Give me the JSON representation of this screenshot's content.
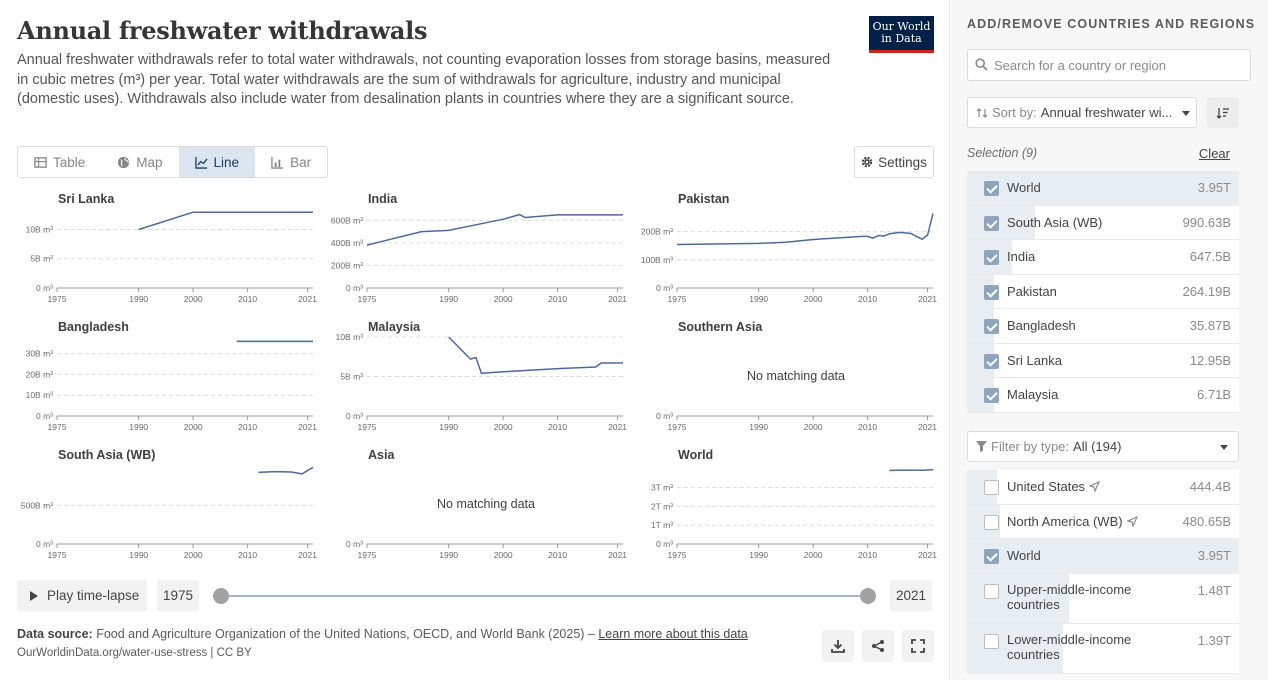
{
  "header": {
    "title": "Annual freshwater withdrawals",
    "subtitle": "Annual freshwater withdrawals refer to total water withdrawals, not counting evaporation losses from storage basins, measured in cubic metres (m³) per year. Total water withdrawals are the sum of withdrawals for agriculture, industry and municipal (domestic uses). Withdrawals also include water from desalination plants in countries where they are a significant source.",
    "logo_line1": "Our World",
    "logo_line2": "in Data"
  },
  "tabs": [
    {
      "label": "Table",
      "icon": "table-icon",
      "active": false
    },
    {
      "label": "Map",
      "icon": "globe-icon",
      "active": false
    },
    {
      "label": "Line",
      "icon": "line-chart-icon",
      "active": true
    },
    {
      "label": "Bar",
      "icon": "bar-chart-icon",
      "active": false
    }
  ],
  "settings_label": "Settings",
  "timeline": {
    "play_label": "Play time-lapse",
    "start_year": "1975",
    "end_year": "2021"
  },
  "footer": {
    "source_label": "Data source:",
    "source_text": "Food and Agriculture Organization of the United Nations, OECD, and World Bank (2025) –",
    "learn_more": "Learn more about this data",
    "url": "OurWorldinData.org/water-use-stress | CC BY"
  },
  "colors": {
    "line": "#4c6a9c",
    "accent": "#002147",
    "logo_red": "#ce261e",
    "selected_bg": "#e8edf2",
    "checkbox_on": "#8da6bd"
  },
  "chart_data": [
    {
      "type": "line",
      "title": "Sri Lanka",
      "x": [
        1990,
        2000,
        2005,
        2022
      ],
      "y": [
        10.0,
        12.95,
        12.95,
        12.95
      ],
      "yticks": [
        "0 m³",
        "5B m³",
        "10B m³"
      ],
      "yticks_values": [
        0,
        5,
        10
      ],
      "ylim": [
        0,
        13.5
      ],
      "xticks": [
        "1975",
        "1990",
        "2000",
        "2010",
        "2021"
      ],
      "xlim": [
        1975,
        2022
      ]
    },
    {
      "type": "line",
      "title": "India",
      "x": [
        1975,
        1985,
        1990,
        1995,
        2000,
        2003,
        2004,
        2010,
        2022
      ],
      "y": [
        380,
        500,
        510,
        560,
        610,
        650,
        625,
        647.5,
        647.5
      ],
      "yticks": [
        "0 m³",
        "200B m³",
        "400B m³",
        "600B m³"
      ],
      "yticks_values": [
        0,
        200,
        400,
        600
      ],
      "ylim": [
        0,
        700
      ],
      "xticks": [
        "1975",
        "1990",
        "2000",
        "2010",
        "2021"
      ],
      "xlim": [
        1975,
        2022
      ]
    },
    {
      "type": "line",
      "title": "Pakistan",
      "x": [
        1975,
        1990,
        1995,
        2000,
        2005,
        2009,
        2010,
        2011,
        2012,
        2013,
        2014,
        2016,
        2018,
        2019,
        2020,
        2021,
        2022
      ],
      "y": [
        154,
        158,
        162,
        172,
        178,
        183,
        183,
        177,
        186,
        184,
        192,
        197,
        193,
        182,
        173,
        188,
        264.19
      ],
      "yticks": [
        "0 m³",
        "100B m³",
        "200B m³"
      ],
      "yticks_values": [
        0,
        100,
        200
      ],
      "ylim": [
        0,
        280
      ],
      "xticks": [
        "1975",
        "1990",
        "2000",
        "2010",
        "2021"
      ],
      "xlim": [
        1975,
        2022
      ]
    },
    {
      "type": "line",
      "title": "Bangladesh",
      "x": [
        2008,
        2022
      ],
      "y": [
        35.87,
        35.87
      ],
      "yticks": [
        "0 m³",
        "10B m³",
        "20B m³",
        "30B m³"
      ],
      "yticks_values": [
        0,
        10,
        20,
        30
      ],
      "ylim": [
        0,
        38
      ],
      "xticks": [
        "1975",
        "1990",
        "2000",
        "2010",
        "2021"
      ],
      "xlim": [
        1975,
        2022
      ]
    },
    {
      "type": "line",
      "title": "Malaysia",
      "x": [
        1990,
        1994,
        1995,
        1996,
        2000,
        2010,
        2017,
        2018,
        2022
      ],
      "y": [
        10.0,
        7.2,
        7.4,
        5.4,
        5.6,
        6.0,
        6.2,
        6.71,
        6.71
      ],
      "yticks": [
        "0 m³",
        "5B m³",
        "10B m³"
      ],
      "yticks_values": [
        0,
        5,
        10
      ],
      "ylim": [
        0,
        10
      ],
      "xticks": [
        "1975",
        "1990",
        "2000",
        "2010",
        "2021"
      ],
      "xlim": [
        1975,
        2022
      ]
    },
    {
      "type": "line",
      "title": "Southern Asia",
      "x": [],
      "y": [],
      "no_data": "No matching data",
      "yticks": [
        "0 m³"
      ],
      "yticks_values": [
        0
      ],
      "ylim": [
        0,
        1
      ],
      "xticks": [
        "1975",
        "1990",
        "2000",
        "2010",
        "2021"
      ],
      "xlim": [
        1975,
        2022
      ]
    },
    {
      "type": "line",
      "title": "South Asia (WB)",
      "x": [
        2012,
        2015,
        2018,
        2020,
        2022
      ],
      "y": [
        925,
        935,
        930,
        905,
        990.63
      ],
      "yticks": [
        "0 m³",
        "500B m³"
      ],
      "yticks_values": [
        0,
        500
      ],
      "ylim": [
        0,
        1020
      ],
      "xticks": [
        "1975",
        "1990",
        "2000",
        "2010",
        "2021"
      ],
      "xlim": [
        1975,
        2022
      ]
    },
    {
      "type": "line",
      "title": "Asia",
      "x": [],
      "y": [],
      "no_data": "No matching data",
      "yticks": [
        "0 m³"
      ],
      "yticks_values": [
        0
      ],
      "ylim": [
        0,
        1
      ],
      "xticks": [
        "1975",
        "1990",
        "2000",
        "2010",
        "2021"
      ],
      "xlim": [
        1975,
        2022
      ]
    },
    {
      "type": "line",
      "title": "World",
      "x": [
        2014,
        2016,
        2019,
        2020,
        2022
      ],
      "y": [
        3.91,
        3.93,
        3.93,
        3.92,
        3.95
      ],
      "yticks": [
        "0 m³",
        "1T m³",
        "2T m³",
        "3T m³"
      ],
      "yticks_values": [
        0,
        1,
        2,
        3
      ],
      "ylim": [
        0,
        4.2
      ],
      "xticks": [
        "1975",
        "1990",
        "2000",
        "2010",
        "2021"
      ],
      "xlim": [
        1975,
        2022
      ]
    }
  ],
  "side": {
    "title": "ADD/REMOVE COUNTRIES AND REGIONS",
    "search_placeholder": "Search for a country or region",
    "sort_label": "Sort by:",
    "sort_value": "Annual freshwater wi...",
    "selection_label": "Selection (9)",
    "clear_label": "Clear",
    "selected": [
      {
        "name": "World",
        "value": "3.95T",
        "share": 1.0
      },
      {
        "name": "South Asia (WB)",
        "value": "990.63B",
        "share": 0.25
      },
      {
        "name": "India",
        "value": "647.5B",
        "share": 0.164
      },
      {
        "name": "Pakistan",
        "value": "264.19B",
        "share": 0.067
      },
      {
        "name": "Bangladesh",
        "value": "35.87B",
        "share": 0.009
      },
      {
        "name": "Sri Lanka",
        "value": "12.95B",
        "share": 0.003
      },
      {
        "name": "Malaysia",
        "value": "6.71B",
        "share": 0.002
      }
    ],
    "filter_label": "Filter by type:",
    "filter_value": "All (194)",
    "all": [
      {
        "name": "United States",
        "value": "444.4B",
        "checked": false,
        "share": 0.112,
        "arrow": true
      },
      {
        "name": "North America (WB)",
        "value": "480.65B",
        "checked": false,
        "share": 0.122,
        "arrow": true
      },
      {
        "name": "World",
        "value": "3.95T",
        "checked": true,
        "share": 1.0,
        "arrow": false
      },
      {
        "name": "Upper-middle-income countries",
        "value": "1.48T",
        "checked": false,
        "share": 0.375,
        "arrow": false
      },
      {
        "name": "Lower-middle-income countries",
        "value": "1.39T",
        "checked": false,
        "share": 0.352,
        "arrow": false
      }
    ]
  }
}
